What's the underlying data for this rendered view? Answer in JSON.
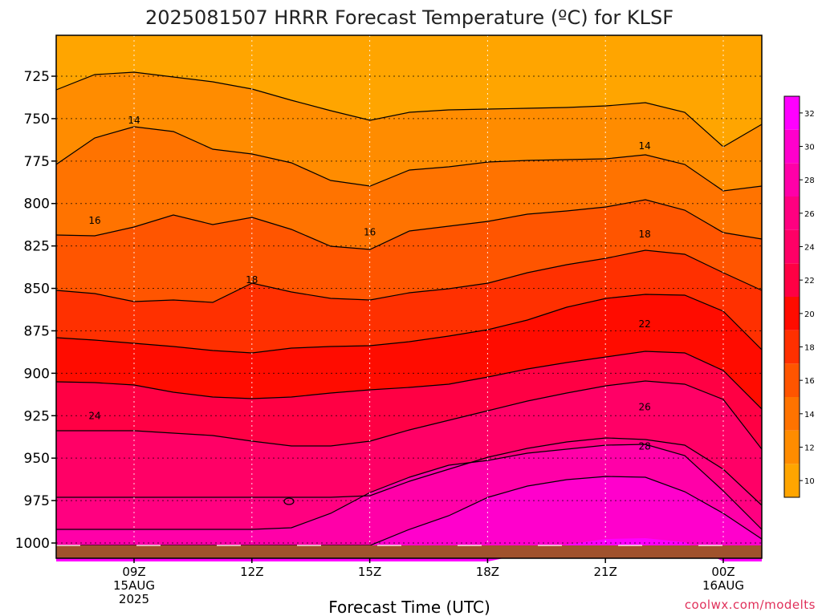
{
  "chart_data": {
    "type": "heatmap",
    "title": "2025081507 HRRR Forecast Temperature (ºC) for KLSF",
    "xlabel": "Forecast Time (UTC)",
    "ylabel": "",
    "y_axis_inverted": true,
    "yticks": [
      725,
      750,
      775,
      800,
      825,
      850,
      875,
      900,
      925,
      950,
      975,
      1000
    ],
    "ylim": [
      1000,
      705
    ],
    "xticks": [
      {
        "hour": 9,
        "line1": "09Z",
        "line2": "15AUG",
        "line3": "2025"
      },
      {
        "hour": 12,
        "line1": "12Z",
        "line2": "",
        "line3": ""
      },
      {
        "hour": 15,
        "line1": "15Z",
        "line2": "",
        "line3": ""
      },
      {
        "hour": 18,
        "line1": "18Z",
        "line2": "",
        "line3": ""
      },
      {
        "hour": 21,
        "line1": "21Z",
        "line2": "",
        "line3": ""
      },
      {
        "hour": 24,
        "line1": "00Z",
        "line2": "16AUG",
        "line3": ""
      }
    ],
    "xlim": [
      7,
      25
    ],
    "colorbar": {
      "ticks": [
        10,
        12,
        14,
        16,
        18,
        20,
        22,
        24,
        26,
        28,
        30,
        32
      ],
      "range": [
        9,
        33
      ],
      "colors": {
        "10": "#ffa500",
        "12": "#ff8c00",
        "14": "#ff7300",
        "16": "#ff5500",
        "18": "#ff3000",
        "20": "#ff0c00",
        "22": "#ff0044",
        "24": "#ff0066",
        "26": "#ff0080",
        "28": "#ff00a8",
        "30": "#ff00cc",
        "32": "#ff00ff"
      }
    },
    "ground_color": "#a0522d",
    "contour_labels": [
      {
        "value": "14",
        "hour": 9,
        "p": 751
      },
      {
        "value": "14",
        "hour": 22,
        "p": 766
      },
      {
        "value": "16",
        "hour": 8,
        "p": 810
      },
      {
        "value": "16",
        "hour": 15,
        "p": 817
      },
      {
        "value": "18",
        "hour": 12,
        "p": 845
      },
      {
        "value": "18",
        "hour": 22,
        "p": 818
      },
      {
        "value": "22",
        "hour": 22,
        "p": 871
      },
      {
        "value": "24",
        "hour": 8,
        "p": 925
      },
      {
        "value": "26",
        "hour": 22,
        "p": 920
      },
      {
        "value": "28",
        "hour": 22,
        "p": 943
      }
    ]
  },
  "credit": "coolwx.com/modelts"
}
